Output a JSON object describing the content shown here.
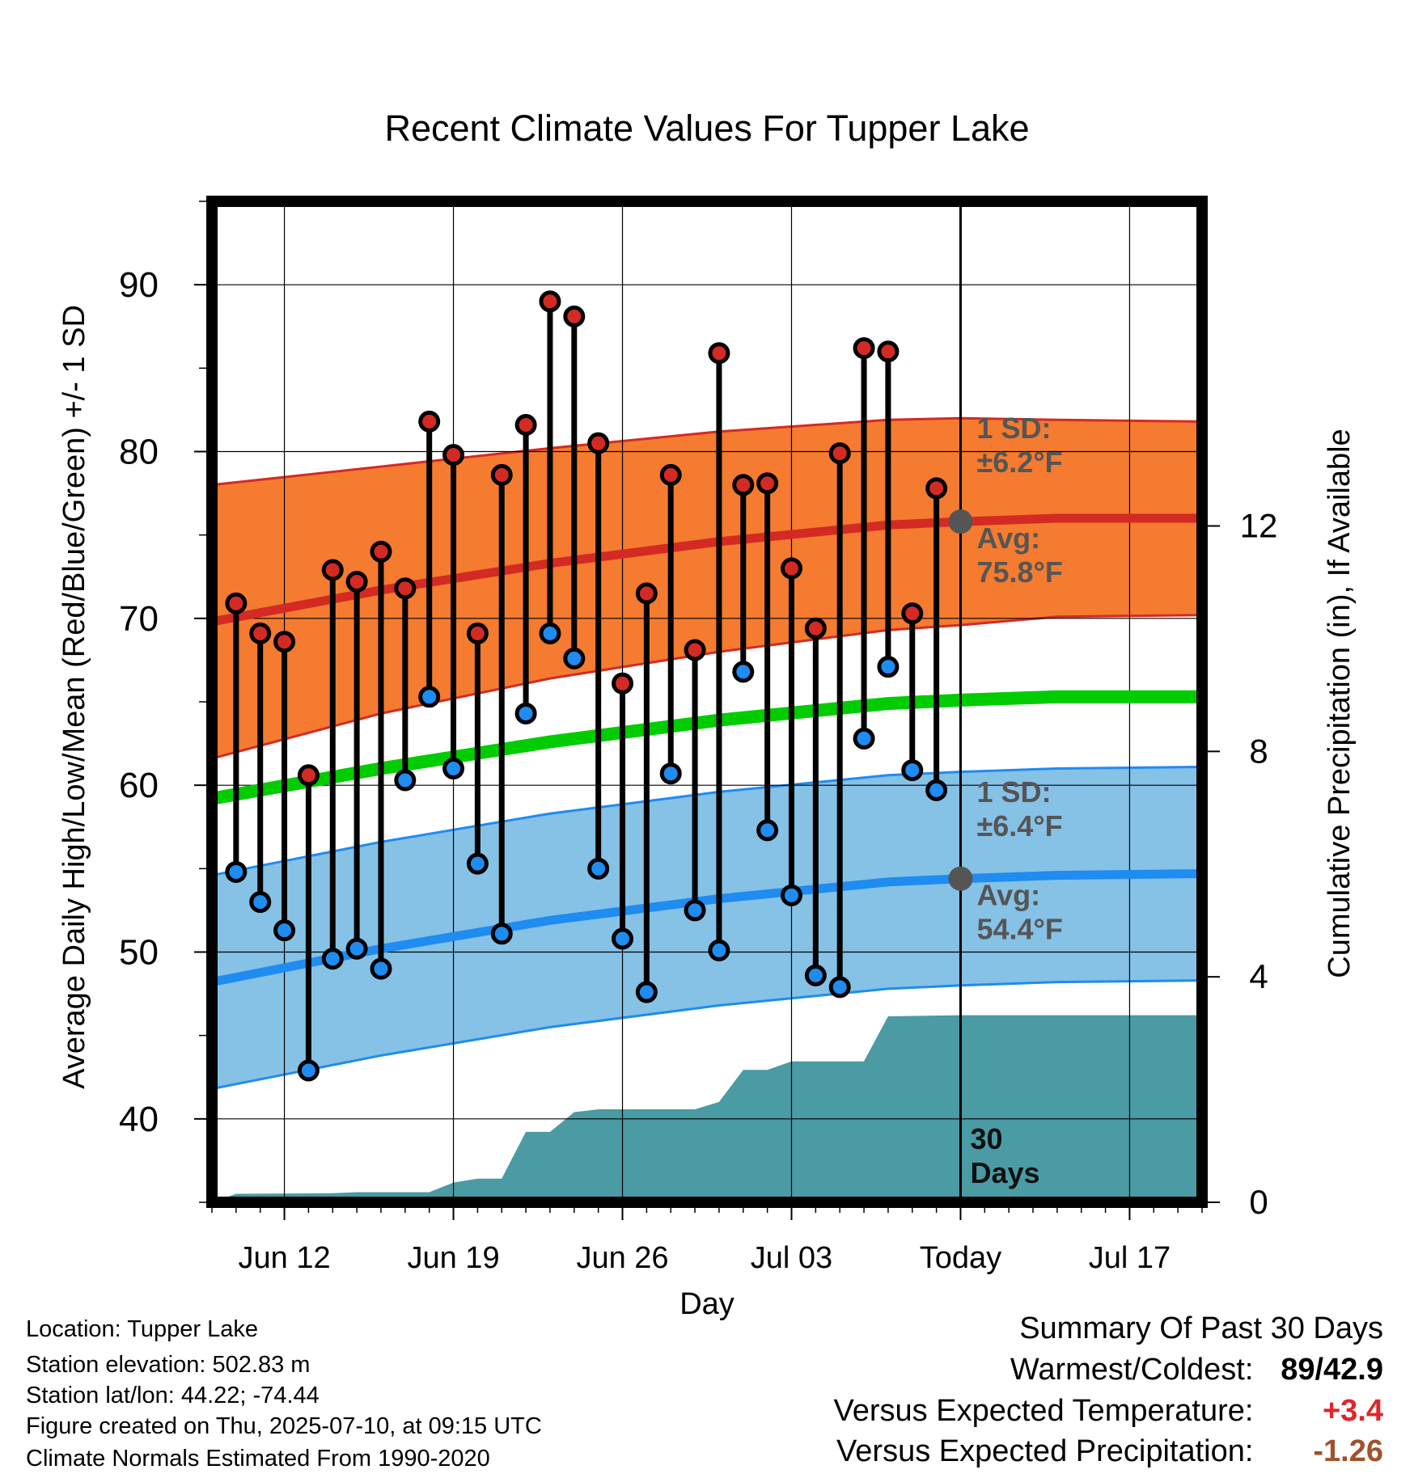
{
  "chart_data": {
    "type": "line",
    "title": "Recent Climate Values For Tupper Lake",
    "xlabel": "Day",
    "ylabel_left": "Average Daily High/Low/Mean (Red/Blue/Green) +/- 1 SD",
    "ylabel_right": "Cumulative Precipitation (in), If Available",
    "x_ticks": [
      "Jun 12",
      "Jun 19",
      "Jun 26",
      "Jul 03",
      "Today",
      "Jul 17"
    ],
    "x_range": [
      "2025-06-09",
      "2025-07-20"
    ],
    "today": "2025-07-10",
    "ylim_left": [
      35,
      95
    ],
    "yticks_left": [
      40,
      50,
      60,
      70,
      80,
      90
    ],
    "ylim_right": [
      0,
      17.76
    ],
    "yticks_right": [
      0,
      4,
      8,
      12
    ],
    "grid": true,
    "daily": [
      {
        "date": "2025-06-10",
        "high": 70.9,
        "low": 54.8
      },
      {
        "date": "2025-06-11",
        "high": 69.1,
        "low": 53.0
      },
      {
        "date": "2025-06-12",
        "high": 68.6,
        "low": 51.3
      },
      {
        "date": "2025-06-13",
        "high": 60.6,
        "low": 42.9
      },
      {
        "date": "2025-06-14",
        "high": 72.9,
        "low": 49.6
      },
      {
        "date": "2025-06-15",
        "high": 72.2,
        "low": 50.2
      },
      {
        "date": "2025-06-16",
        "high": 74.0,
        "low": 49.0
      },
      {
        "date": "2025-06-17",
        "high": 71.8,
        "low": 60.3
      },
      {
        "date": "2025-06-18",
        "high": 81.8,
        "low": 65.3
      },
      {
        "date": "2025-06-19",
        "high": 79.8,
        "low": 61.0
      },
      {
        "date": "2025-06-20",
        "high": 69.1,
        "low": 55.3
      },
      {
        "date": "2025-06-21",
        "high": 78.6,
        "low": 51.1
      },
      {
        "date": "2025-06-22",
        "high": 81.6,
        "low": 64.3
      },
      {
        "date": "2025-06-23",
        "high": 89.0,
        "low": 69.1
      },
      {
        "date": "2025-06-24",
        "high": 88.1,
        "low": 67.6
      },
      {
        "date": "2025-06-25",
        "high": 80.5,
        "low": 55.0
      },
      {
        "date": "2025-06-26",
        "high": 66.1,
        "low": 50.8
      },
      {
        "date": "2025-06-27",
        "high": 71.5,
        "low": 47.6
      },
      {
        "date": "2025-06-28",
        "high": 78.6,
        "low": 60.7
      },
      {
        "date": "2025-06-29",
        "high": 68.1,
        "low": 52.5
      },
      {
        "date": "2025-06-30",
        "high": 85.9,
        "low": 50.1
      },
      {
        "date": "2025-07-01",
        "high": 78.0,
        "low": 66.8
      },
      {
        "date": "2025-07-02",
        "high": 78.1,
        "low": 57.3
      },
      {
        "date": "2025-07-03",
        "high": 73.0,
        "low": 53.4
      },
      {
        "date": "2025-07-04",
        "high": 69.4,
        "low": 48.6
      },
      {
        "date": "2025-07-05",
        "high": 79.9,
        "low": 47.9
      },
      {
        "date": "2025-07-06",
        "high": 86.2,
        "low": 62.8
      },
      {
        "date": "2025-07-07",
        "high": 86.0,
        "low": 67.1
      },
      {
        "date": "2025-07-08",
        "high": 70.3,
        "low": 60.9
      },
      {
        "date": "2025-07-09",
        "high": 77.8,
        "low": 59.7
      }
    ],
    "normals": [
      {
        "date": "2025-06-09",
        "high": 69.8,
        "high_sd": 8.2,
        "low": 48.2,
        "low_sd": 6.4,
        "mean": 59.2
      },
      {
        "date": "2025-06-16",
        "high": 71.7,
        "high_sd": 7.4,
        "low": 50.2,
        "low_sd": 6.4,
        "mean": 61.0
      },
      {
        "date": "2025-06-23",
        "high": 73.3,
        "high_sd": 6.9,
        "low": 51.9,
        "low_sd": 6.4,
        "mean": 62.6
      },
      {
        "date": "2025-06-30",
        "high": 74.6,
        "high_sd": 6.6,
        "low": 53.2,
        "low_sd": 6.4,
        "mean": 63.9
      },
      {
        "date": "2025-07-07",
        "high": 75.6,
        "high_sd": 6.3,
        "low": 54.2,
        "low_sd": 6.4,
        "mean": 64.9
      },
      {
        "date": "2025-07-10",
        "high": 75.8,
        "high_sd": 6.2,
        "low": 54.4,
        "low_sd": 6.4,
        "mean": 65.1
      },
      {
        "date": "2025-07-14",
        "high": 76.0,
        "high_sd": 5.9,
        "low": 54.6,
        "low_sd": 6.4,
        "mean": 65.3
      },
      {
        "date": "2025-07-20",
        "high": 76.0,
        "high_sd": 5.8,
        "low": 54.7,
        "low_sd": 6.4,
        "mean": 65.3
      }
    ],
    "precip_cumulative": [
      {
        "date": "2025-06-09",
        "value": 0.0
      },
      {
        "date": "2025-06-10",
        "value": 0.15
      },
      {
        "date": "2025-06-14",
        "value": 0.16
      },
      {
        "date": "2025-06-15",
        "value": 0.18
      },
      {
        "date": "2025-06-18",
        "value": 0.18
      },
      {
        "date": "2025-06-19",
        "value": 0.35
      },
      {
        "date": "2025-06-20",
        "value": 0.42
      },
      {
        "date": "2025-06-21",
        "value": 0.42
      },
      {
        "date": "2025-06-22",
        "value": 1.25
      },
      {
        "date": "2025-06-23",
        "value": 1.25
      },
      {
        "date": "2025-06-24",
        "value": 1.6
      },
      {
        "date": "2025-06-25",
        "value": 1.65
      },
      {
        "date": "2025-06-29",
        "value": 1.65
      },
      {
        "date": "2025-06-30",
        "value": 1.78
      },
      {
        "date": "2025-07-01",
        "value": 2.35
      },
      {
        "date": "2025-07-02",
        "value": 2.35
      },
      {
        "date": "2025-07-03",
        "value": 2.5
      },
      {
        "date": "2025-07-06",
        "value": 2.5
      },
      {
        "date": "2025-07-07",
        "value": 3.3
      },
      {
        "date": "2025-07-10",
        "value": 3.32
      },
      {
        "date": "2025-07-20",
        "value": 3.32
      }
    ],
    "annotations": {
      "high_sd_label": [
        "1 SD:",
        "±6.2°F"
      ],
      "high_avg_label": [
        "Avg:",
        "75.8°F"
      ],
      "low_sd_label": [
        "1 SD:",
        "±6.4°F"
      ],
      "low_avg_label": [
        "Avg:",
        "54.4°F"
      ],
      "today_label": [
        "30",
        "Days"
      ],
      "high_avg_value": 75.8,
      "low_avg_value": 54.4
    },
    "colors": {
      "high_band": "#f47b2f",
      "high_line": "#d42a24",
      "low_band": "#86c1e6",
      "low_line": "#1e8cf0",
      "mean_line": "#00cc00",
      "precip": "#4a9ba3",
      "high_dot": "#d42a24",
      "low_dot": "#1e8cf0",
      "annotation_text": "#555555"
    }
  },
  "info": {
    "location": "Location: Tupper Lake",
    "elevation": "Station elevation: 502.83 m",
    "latlon": "Station lat/lon: 44.22; -74.44",
    "created": "Figure created on Thu, 2025-07-10, at 09:15 UTC",
    "normals": "Climate Normals Estimated From 1990-2020"
  },
  "summary": {
    "title": "Summary Of Past 30 Days",
    "warm_cold_label": "Warmest/Coldest:",
    "warm_cold_value": "89/42.9",
    "temp_label": "Versus Expected Temperature:",
    "temp_value": "+3.4",
    "temp_color": "#e0262a",
    "precip_label": "Versus Expected Precipitation:",
    "precip_value": "-1.26",
    "precip_color": "#a0522d"
  }
}
